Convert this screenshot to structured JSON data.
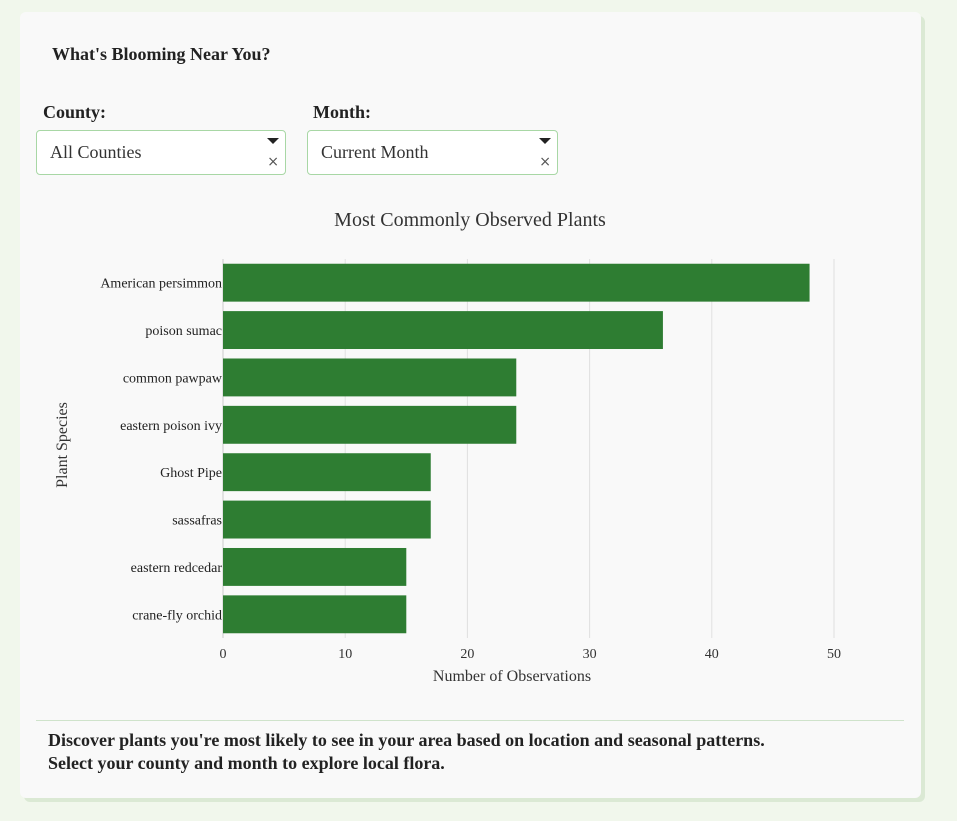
{
  "app": {
    "title": "What's Blooming Near You?"
  },
  "filters": {
    "county": {
      "label": "County:",
      "value": "All Counties",
      "clear": "×"
    },
    "month": {
      "label": "Month:",
      "value": "Current Month",
      "clear": "×"
    }
  },
  "footer": {
    "line1": "Discover plants you're most likely to see in your area based on location and seasonal patterns.",
    "line2": "Select your county and month to explore local flora."
  },
  "colors": {
    "bar": "#2e7d32",
    "grid": "#e0e0e0",
    "accent_border": "#a8d7a5"
  },
  "chart_data": {
    "type": "bar",
    "orientation": "horizontal",
    "title": "Most Commonly Observed Plants",
    "xlabel": "Number of Observations",
    "ylabel": "Plant Species",
    "categories": [
      "American persimmon",
      "poison sumac",
      "common pawpaw",
      "eastern poison ivy",
      "Ghost Pipe",
      "sassafras",
      "eastern redcedar",
      "crane-fly orchid"
    ],
    "values": [
      48,
      36,
      24,
      24,
      17,
      17,
      15,
      15
    ],
    "xlim": [
      0,
      50
    ],
    "xticks": [
      0,
      10,
      20,
      30,
      40,
      50
    ],
    "grid": true
  }
}
